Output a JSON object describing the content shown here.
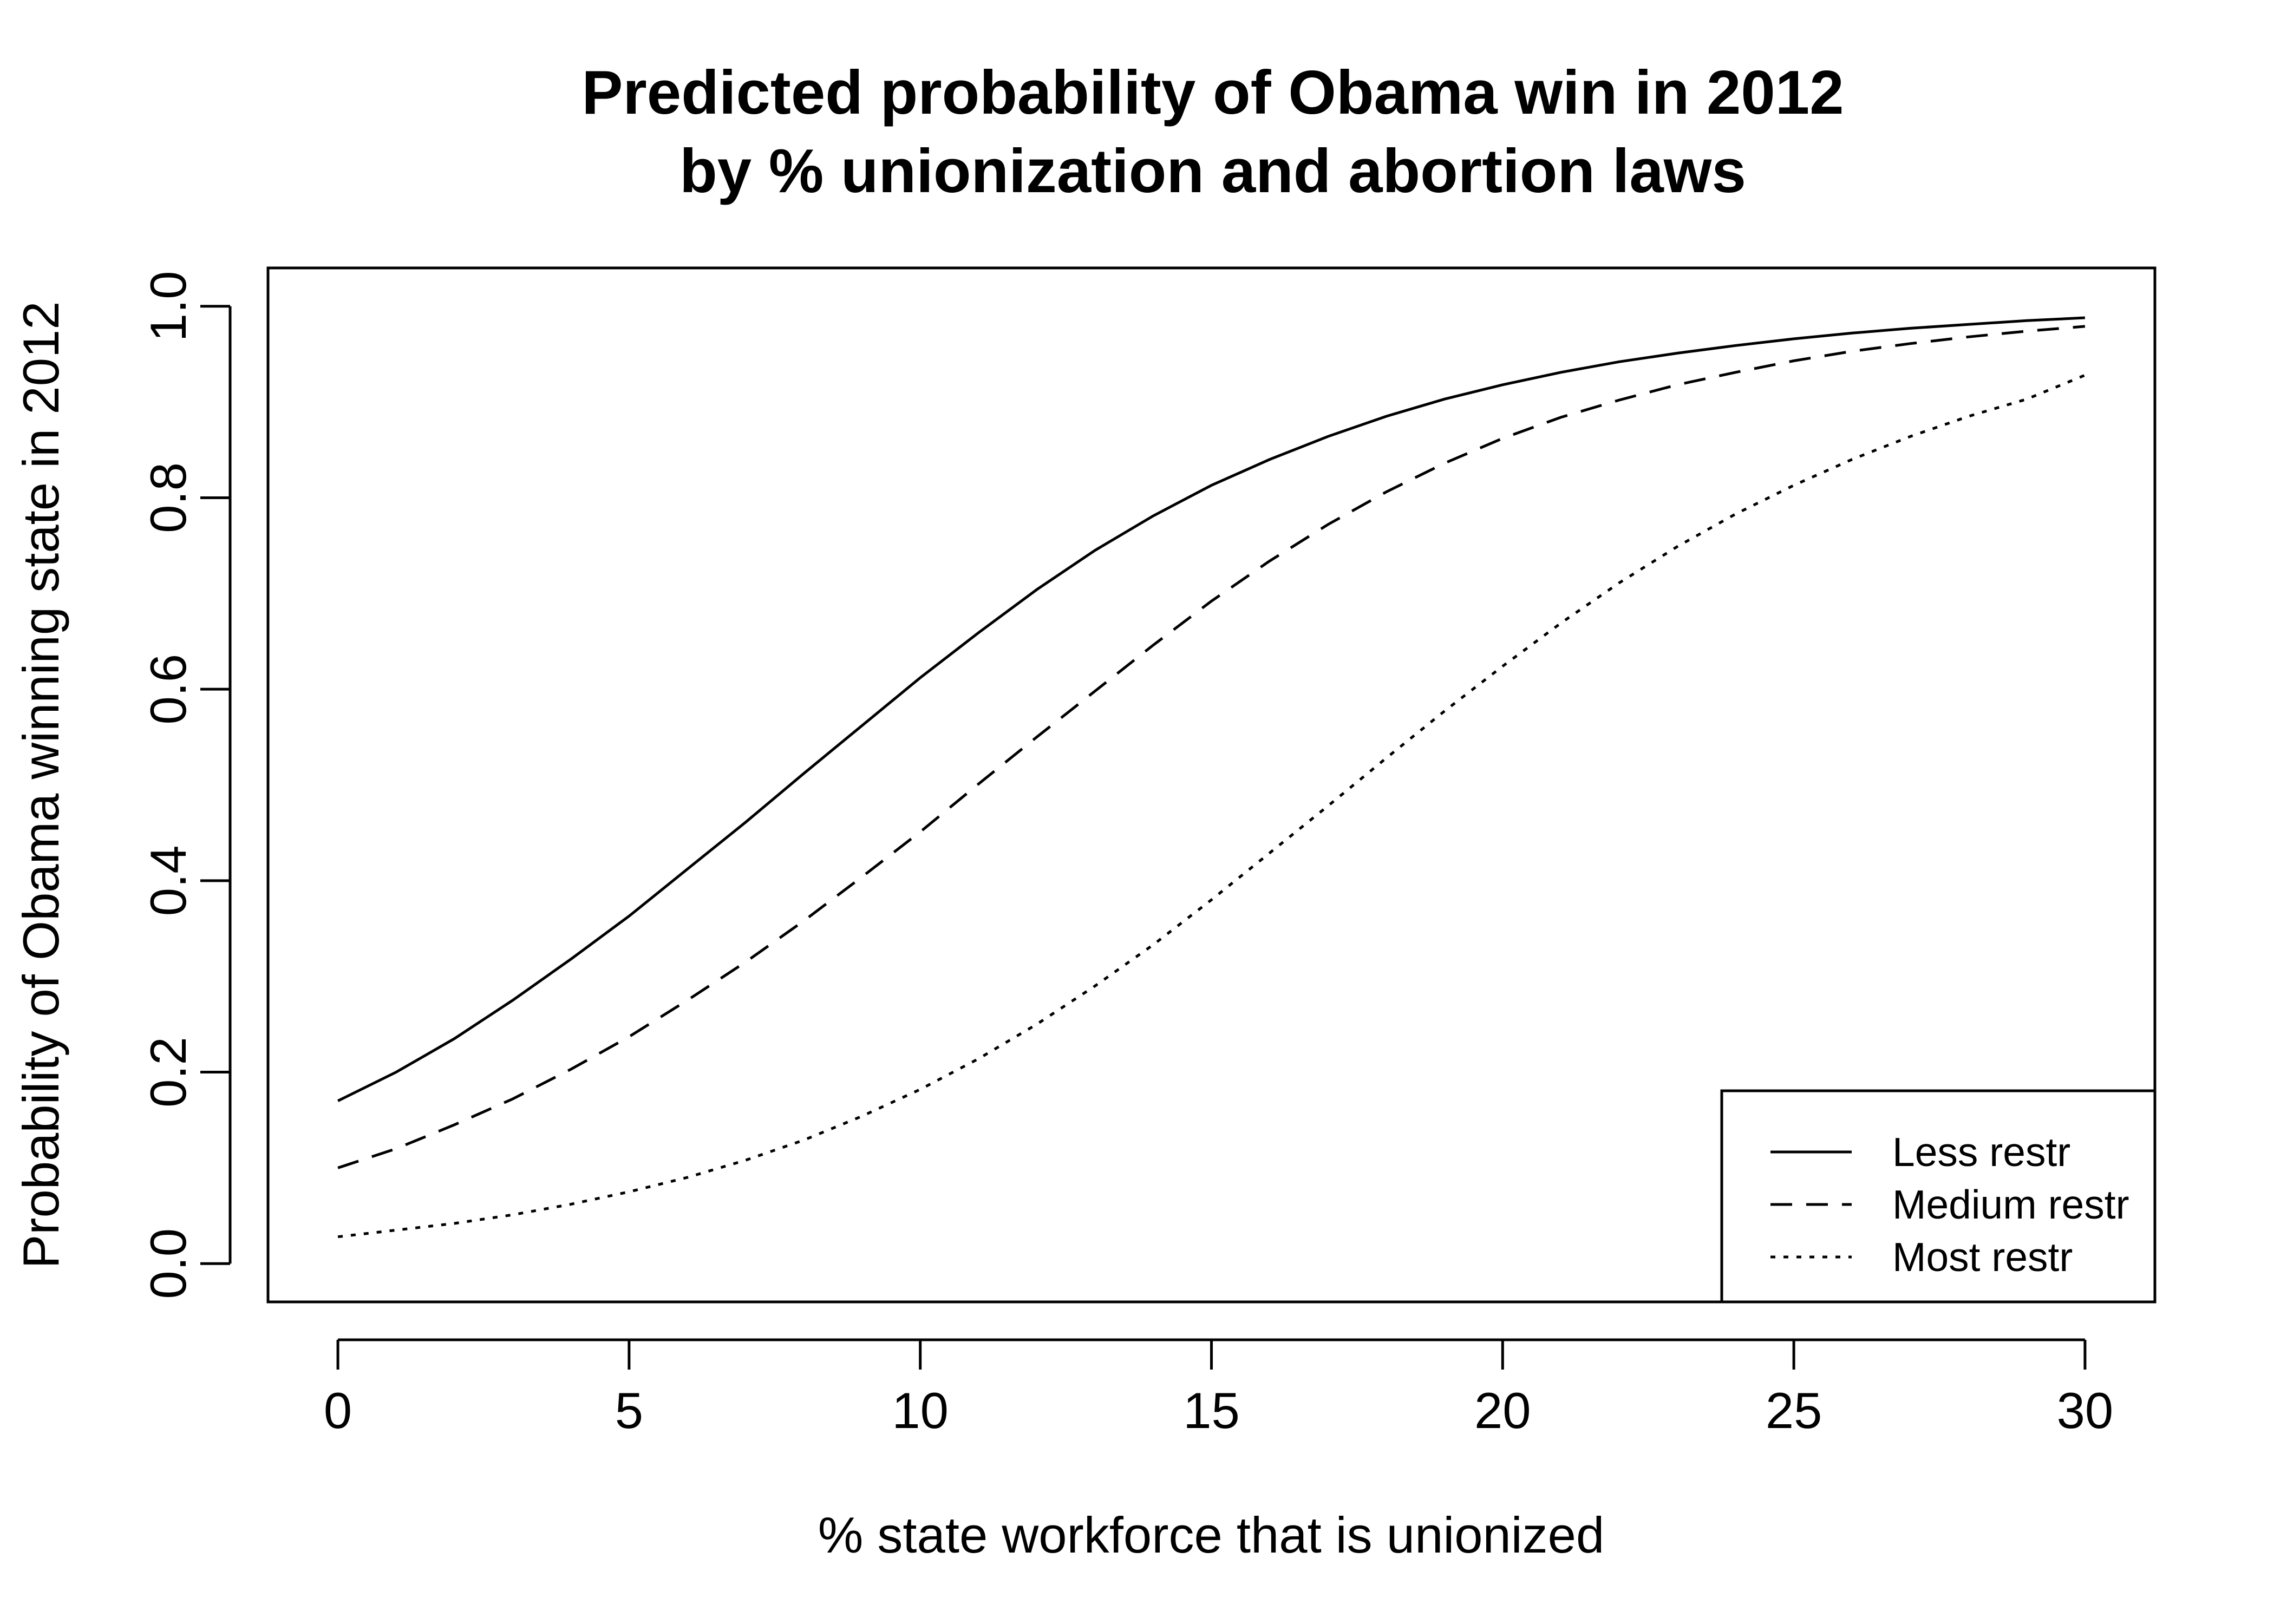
{
  "chart_data": {
    "type": "line",
    "title": "Predicted probability of Obama win in 2012",
    "subtitle": "by % unionization and abortion laws",
    "xlabel": "% state workforce that is unionized",
    "ylabel": "Probability of Obama winning state in 2012",
    "xlim": [
      -1.2,
      31.2
    ],
    "ylim": [
      -0.04,
      1.04
    ],
    "xticks": [
      0,
      5,
      10,
      15,
      20,
      25,
      30
    ],
    "yticks": [
      0.0,
      0.2,
      0.4,
      0.6,
      0.8,
      1.0
    ],
    "xtick_labels": [
      "0",
      "5",
      "10",
      "15",
      "20",
      "25",
      "30"
    ],
    "ytick_labels": [
      "0.0",
      "0.2",
      "0.4",
      "0.6",
      "0.8",
      "1.0"
    ],
    "grid": false,
    "legend": {
      "position": "bottom-right",
      "entries": [
        "Less restr",
        "Medium restr",
        "Most restr"
      ]
    },
    "x": [
      0,
      1,
      2,
      3,
      4,
      5,
      6,
      7,
      8,
      9,
      10,
      11,
      12,
      13,
      14,
      15,
      16,
      17,
      18,
      19,
      20,
      21,
      22,
      23,
      24,
      25,
      26,
      27,
      28,
      29,
      30
    ],
    "series": [
      {
        "name": "Less restr",
        "line_style": "solid",
        "values": [
          0.17,
          0.2,
          0.235,
          0.275,
          0.318,
          0.363,
          0.412,
          0.461,
          0.512,
          0.562,
          0.612,
          0.659,
          0.704,
          0.745,
          0.781,
          0.813,
          0.84,
          0.864,
          0.885,
          0.903,
          0.918,
          0.931,
          0.942,
          0.951,
          0.959,
          0.966,
          0.972,
          0.977,
          0.981,
          0.985,
          0.988
        ]
      },
      {
        "name": "Medium restr",
        "line_style": "dashed",
        "values": [
          0.1,
          0.12,
          0.145,
          0.172,
          0.203,
          0.237,
          0.275,
          0.315,
          0.358,
          0.404,
          0.451,
          0.501,
          0.55,
          0.598,
          0.646,
          0.692,
          0.734,
          0.772,
          0.806,
          0.836,
          0.862,
          0.884,
          0.902,
          0.918,
          0.931,
          0.943,
          0.953,
          0.961,
          0.968,
          0.974,
          0.979
        ]
      },
      {
        "name": "Most restr",
        "line_style": "dotted",
        "values": [
          0.028,
          0.035,
          0.042,
          0.051,
          0.062,
          0.075,
          0.09,
          0.108,
          0.129,
          0.154,
          0.182,
          0.214,
          0.25,
          0.29,
          0.333,
          0.38,
          0.429,
          0.478,
          0.528,
          0.577,
          0.624,
          0.669,
          0.711,
          0.749,
          0.783,
          0.813,
          0.84,
          0.864,
          0.885,
          0.903,
          0.928
        ]
      }
    ]
  }
}
